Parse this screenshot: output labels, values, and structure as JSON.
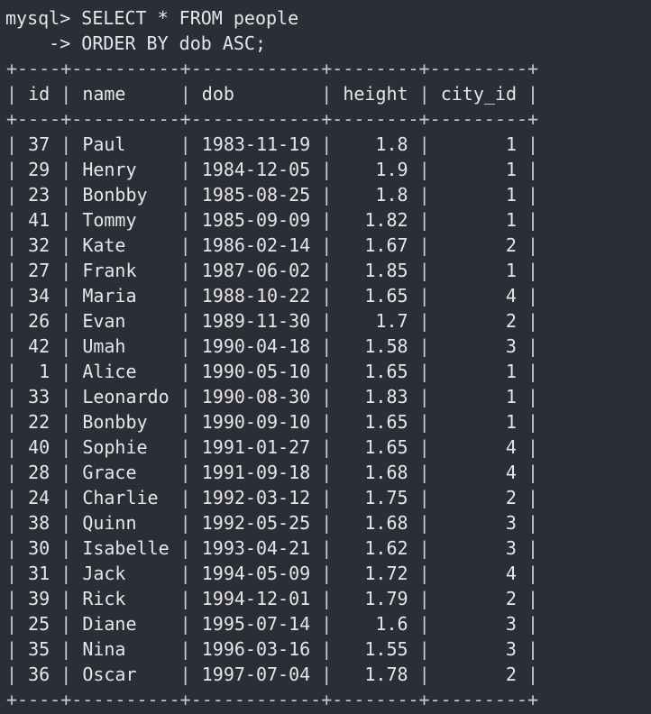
{
  "terminal": {
    "prompt": "mysql> SELECT * FROM people",
    "continuation": "    -> ORDER BY dob ASC;",
    "border": "+----+----------+------------+--------+---------+",
    "columns": [
      "id",
      "name",
      "dob",
      "height",
      "city_id"
    ],
    "rows": [
      [
        "37",
        "Paul",
        "1983-11-19",
        "1.8",
        "1"
      ],
      [
        "29",
        "Henry",
        "1984-12-05",
        "1.9",
        "1"
      ],
      [
        "23",
        "Bonbby",
        "1985-08-25",
        "1.8",
        "1"
      ],
      [
        "41",
        "Tommy",
        "1985-09-09",
        "1.82",
        "1"
      ],
      [
        "32",
        "Kate",
        "1986-02-14",
        "1.67",
        "2"
      ],
      [
        "27",
        "Frank",
        "1987-06-02",
        "1.85",
        "1"
      ],
      [
        "34",
        "Maria",
        "1988-10-22",
        "1.65",
        "4"
      ],
      [
        "26",
        "Evan",
        "1989-11-30",
        "1.7",
        "2"
      ],
      [
        "42",
        "Umah",
        "1990-04-18",
        "1.58",
        "3"
      ],
      [
        "1",
        "Alice",
        "1990-05-10",
        "1.65",
        "1"
      ],
      [
        "33",
        "Leonardo",
        "1990-08-30",
        "1.83",
        "1"
      ],
      [
        "22",
        "Bonbby",
        "1990-09-10",
        "1.65",
        "1"
      ],
      [
        "40",
        "Sophie",
        "1991-01-27",
        "1.65",
        "4"
      ],
      [
        "28",
        "Grace",
        "1991-09-18",
        "1.68",
        "4"
      ],
      [
        "24",
        "Charlie",
        "1992-03-12",
        "1.75",
        "2"
      ],
      [
        "38",
        "Quinn",
        "1992-05-25",
        "1.68",
        "3"
      ],
      [
        "30",
        "Isabelle",
        "1993-04-21",
        "1.62",
        "3"
      ],
      [
        "31",
        "Jack",
        "1994-05-09",
        "1.72",
        "4"
      ],
      [
        "39",
        "Rick",
        "1994-12-01",
        "1.79",
        "2"
      ],
      [
        "25",
        "Diane",
        "1995-07-14",
        "1.6",
        "3"
      ],
      [
        "35",
        "Nina",
        "1996-03-16",
        "1.55",
        "3"
      ],
      [
        "36",
        "Oscar",
        "1997-07-04",
        "1.78",
        "2"
      ]
    ],
    "colors": {
      "background": "#2b2e36",
      "text": "#e6e6e6"
    }
  }
}
